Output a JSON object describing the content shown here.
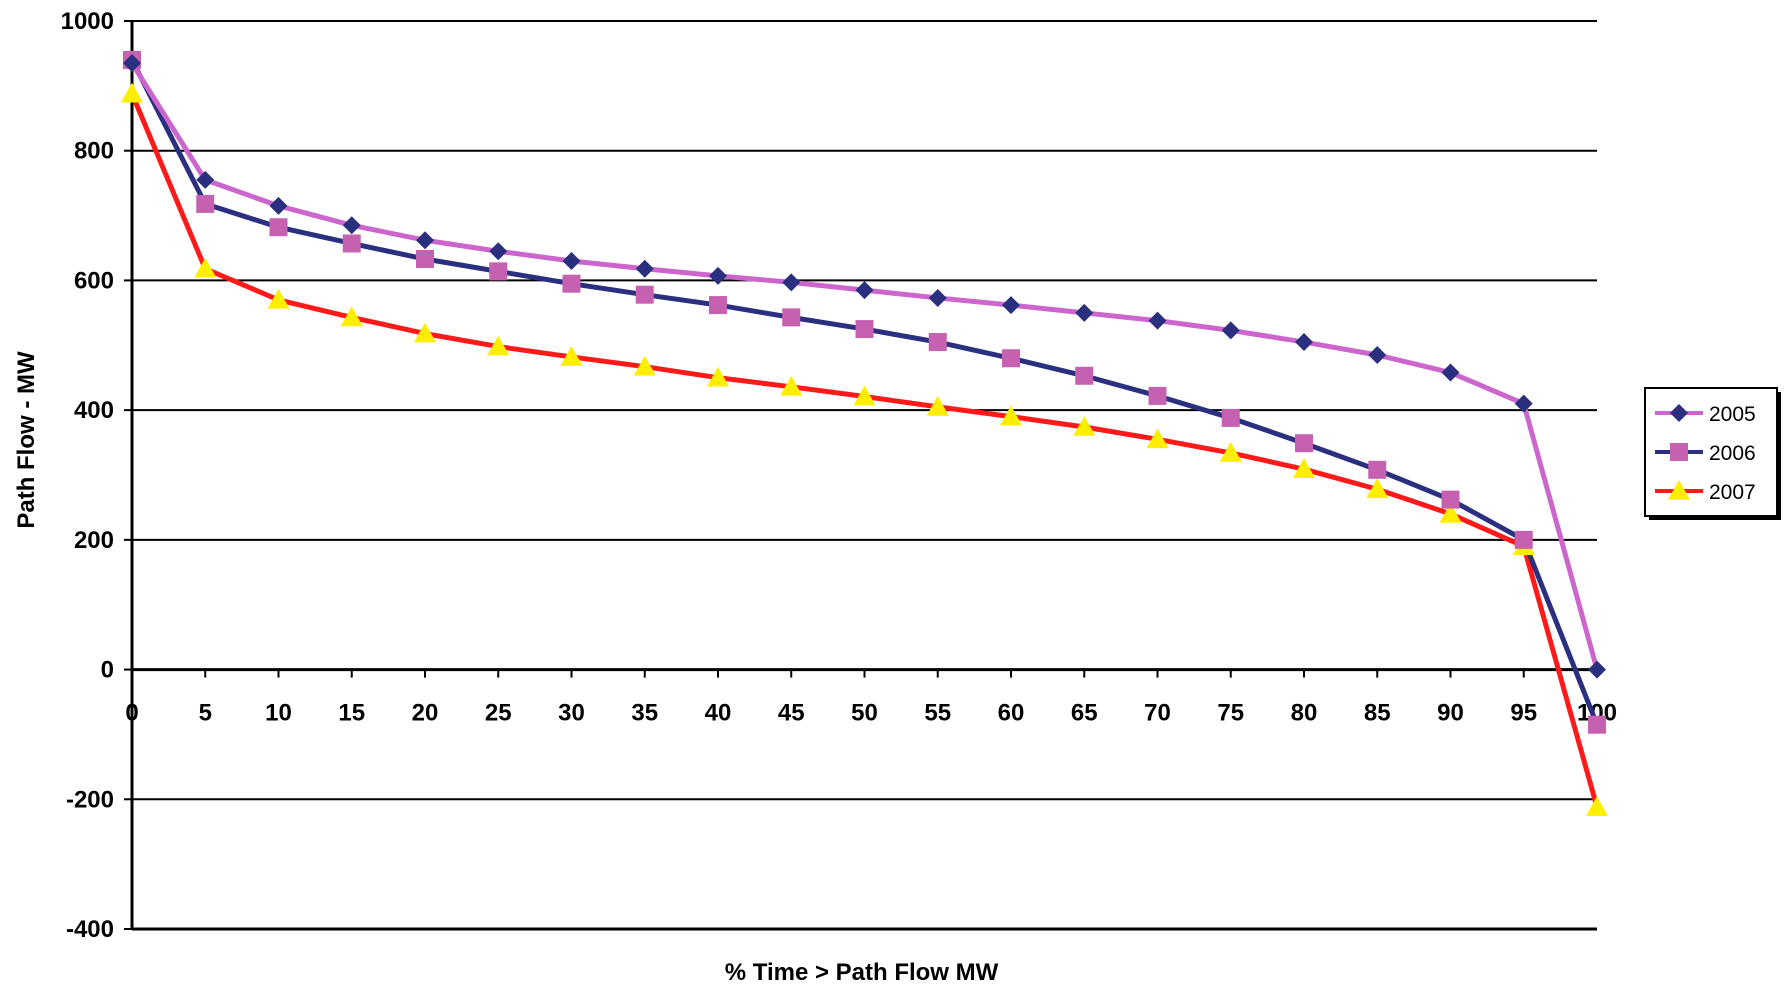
{
  "chart_data": {
    "type": "line",
    "title": "",
    "xlabel": "% Time > Path Flow MW",
    "ylabel": "Path Flow - MW",
    "x": [
      0,
      5,
      10,
      15,
      20,
      25,
      30,
      35,
      40,
      45,
      50,
      55,
      60,
      65,
      70,
      75,
      80,
      85,
      90,
      95,
      100
    ],
    "xlim": [
      0,
      100
    ],
    "ylim": [
      -400,
      1000
    ],
    "yticks": [
      -400,
      -200,
      0,
      200,
      400,
      600,
      800,
      1000
    ],
    "grid": "horizontal",
    "legend_position": "right",
    "series": [
      {
        "name": "2005",
        "line_color": "#cc66cc",
        "marker": "diamond",
        "marker_color": "#2b2f7f",
        "values": [
          935,
          755,
          715,
          685,
          662,
          645,
          630,
          618,
          607,
          597,
          585,
          573,
          562,
          550,
          538,
          523,
          505,
          485,
          458,
          410,
          0
        ]
      },
      {
        "name": "2006",
        "line_color": "#2b2f7f",
        "marker": "square",
        "marker_color": "#c660b0",
        "values": [
          940,
          718,
          682,
          657,
          633,
          614,
          595,
          578,
          562,
          543,
          525,
          505,
          480,
          453,
          422,
          388,
          349,
          308,
          262,
          200,
          -85
        ]
      },
      {
        "name": "2007",
        "line_color": "#ff1a1a",
        "marker": "triangle",
        "marker_color": "#ffee00",
        "values": [
          888,
          618,
          570,
          543,
          518,
          498,
          482,
          467,
          450,
          436,
          421,
          405,
          390,
          374,
          355,
          334,
          309,
          278,
          240,
          190,
          -212
        ]
      }
    ]
  }
}
